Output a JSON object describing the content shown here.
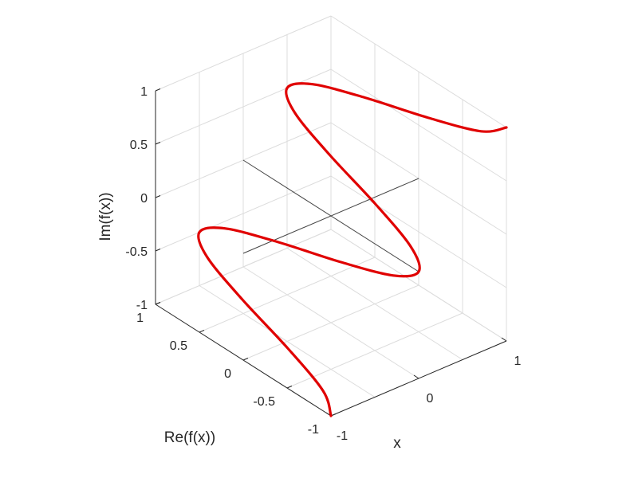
{
  "chart_data": {
    "type": "line",
    "projection": "3d",
    "title": "",
    "xlabel": "x",
    "ylabel": "Re(f(x))",
    "zlabel": "Im(f(x))",
    "xlim": [
      -1,
      1
    ],
    "ylim": [
      -1,
      1
    ],
    "zlim": [
      -1,
      1
    ],
    "x_ticks": [
      "-1",
      "0",
      "1"
    ],
    "y_ticks": [
      "-1",
      "-0.5",
      "0",
      "0.5",
      "1"
    ],
    "z_ticks": [
      "-1",
      "-0.5",
      "0",
      "0.5",
      "1"
    ],
    "grid": true,
    "reference_axes_through_origin": true,
    "series": [
      {
        "color": "#e00000",
        "x": [
          -1,
          -0.9,
          -0.8,
          -0.7,
          -0.6,
          -0.5,
          -0.4,
          -0.3,
          -0.2,
          -0.1,
          0,
          0.1,
          0.2,
          0.3,
          0.4,
          0.5,
          0.6,
          0.7,
          0.8,
          0.9,
          1
        ],
        "y": [
          -1,
          -0.81,
          -0.31,
          0.31,
          0.81,
          1,
          0.81,
          0.31,
          -0.31,
          -0.81,
          -1,
          -0.81,
          -0.31,
          0.31,
          0.81,
          1,
          0.81,
          0.31,
          -0.31,
          -0.81,
          -1
        ],
        "z": [
          -1,
          -0.9,
          -0.8,
          -0.7,
          -0.6,
          -0.5,
          -0.4,
          -0.3,
          -0.2,
          -0.1,
          0,
          0.1,
          0.2,
          0.3,
          0.4,
          0.5,
          0.6,
          0.7,
          0.8,
          0.9,
          1
        ]
      }
    ]
  }
}
